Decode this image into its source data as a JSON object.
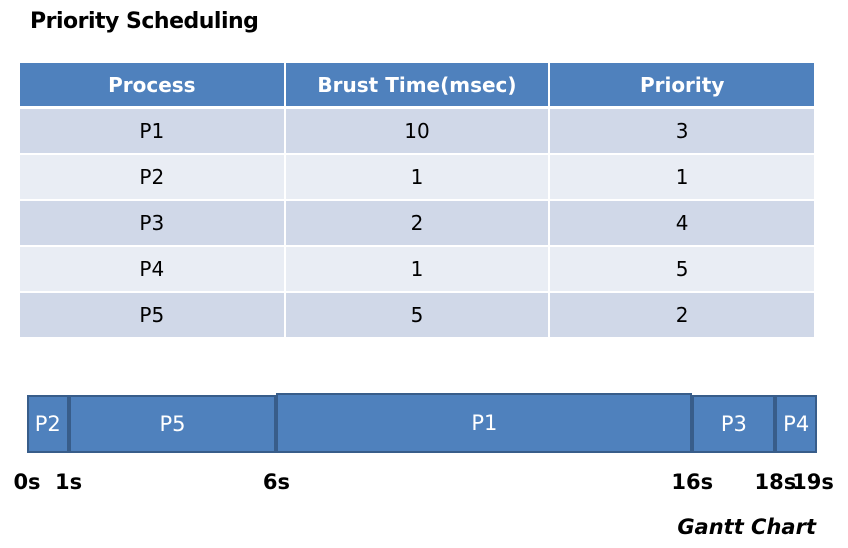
{
  "title": "Priority Scheduling",
  "table": {
    "headers": [
      "Process",
      "Brust Time(msec)",
      "Priority"
    ],
    "rows": [
      [
        "P1",
        "10",
        "3"
      ],
      [
        "P2",
        "1",
        "1"
      ],
      [
        "P3",
        "2",
        "4"
      ],
      [
        "P4",
        "1",
        "5"
      ],
      [
        "P5",
        "5",
        "2"
      ]
    ]
  },
  "gantt": {
    "caption": "Gantt Chart",
    "total": 19,
    "segments": [
      {
        "label": "P2",
        "start": 0,
        "end": 1
      },
      {
        "label": "P5",
        "start": 1,
        "end": 6
      },
      {
        "label": "P1",
        "start": 6,
        "end": 16
      },
      {
        "label": "P3",
        "start": 16,
        "end": 18
      },
      {
        "label": "P4",
        "start": 18,
        "end": 19
      }
    ],
    "ticks": [
      {
        "label": "0s",
        "time": 0
      },
      {
        "label": "1s",
        "time": 1
      },
      {
        "label": "6s",
        "time": 6
      },
      {
        "label": "16s",
        "time": 16
      },
      {
        "label": "18s",
        "time": 18
      },
      {
        "label": "19s",
        "time": 19
      }
    ]
  },
  "colors": {
    "header": "#4f81bd",
    "row_odd": "#d0d8e8",
    "row_even": "#e9edf4",
    "bar": "#4f81bd",
    "bar_border": "#385d8a"
  }
}
